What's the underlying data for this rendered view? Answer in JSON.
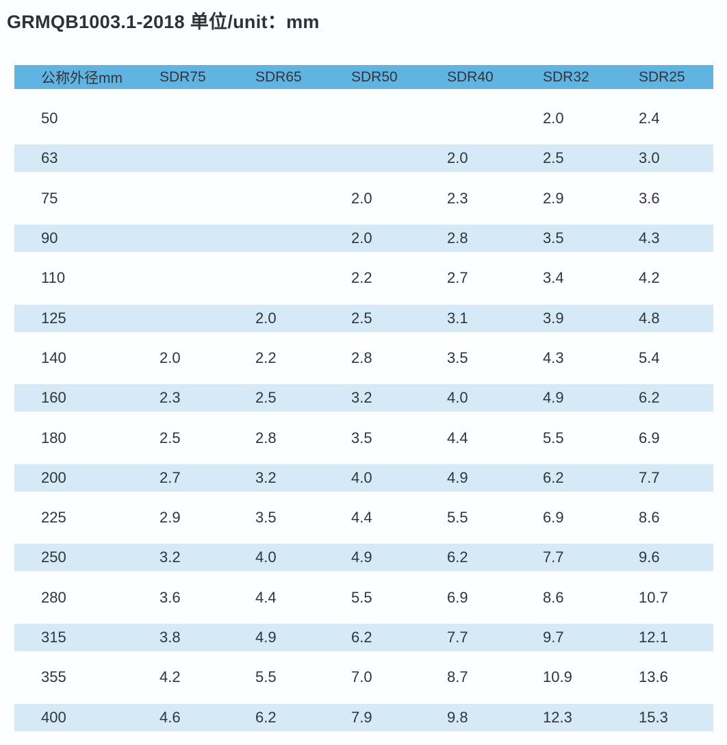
{
  "title": "GRMQB1003.1-2018 单位/unit：mm",
  "chart_data": {
    "type": "table",
    "standard": "GRMQB1003.1-2018",
    "unit_label": "单位/unit：mm",
    "columns": [
      "公称外径mm",
      "SDR75",
      "SDR65",
      "SDR50",
      "SDR40",
      "SDR32",
      "SDR25"
    ],
    "rows": [
      {
        "dn": "50",
        "values": [
          "",
          "",
          "",
          "",
          "2.0",
          "2.4"
        ]
      },
      {
        "dn": "63",
        "values": [
          "",
          "",
          "",
          "2.0",
          "2.5",
          "3.0"
        ]
      },
      {
        "dn": "75",
        "values": [
          "",
          "",
          "2.0",
          "2.3",
          "2.9",
          "3.6"
        ]
      },
      {
        "dn": "90",
        "values": [
          "",
          "",
          "2.0",
          "2.8",
          "3.5",
          "4.3"
        ]
      },
      {
        "dn": "110",
        "values": [
          "",
          "",
          "2.2",
          "2.7",
          "3.4",
          "4.2"
        ]
      },
      {
        "dn": "125",
        "values": [
          "",
          "2.0",
          "2.5",
          "3.1",
          "3.9",
          "4.8"
        ]
      },
      {
        "dn": "140",
        "values": [
          "2.0",
          "2.2",
          "2.8",
          "3.5",
          "4.3",
          "5.4"
        ]
      },
      {
        "dn": "160",
        "values": [
          "2.3",
          "2.5",
          "3.2",
          "4.0",
          "4.9",
          "6.2"
        ]
      },
      {
        "dn": "180",
        "values": [
          "2.5",
          "2.8",
          "3.5",
          "4.4",
          "5.5",
          "6.9"
        ]
      },
      {
        "dn": "200",
        "values": [
          "2.7",
          "3.2",
          "4.0",
          "4.9",
          "6.2",
          "7.7"
        ]
      },
      {
        "dn": "225",
        "values": [
          "2.9",
          "3.5",
          "4.4",
          "5.5",
          "6.9",
          "8.6"
        ]
      },
      {
        "dn": "250",
        "values": [
          "3.2",
          "4.0",
          "4.9",
          "6.2",
          "7.7",
          "9.6"
        ]
      },
      {
        "dn": "280",
        "values": [
          "3.6",
          "4.4",
          "5.5",
          "6.9",
          "8.6",
          "10.7"
        ]
      },
      {
        "dn": "315",
        "values": [
          "3.8",
          "4.9",
          "6.2",
          "7.7",
          "9.7",
          "12.1"
        ]
      },
      {
        "dn": "355",
        "values": [
          "4.2",
          "5.5",
          "7.0",
          "8.7",
          "10.9",
          "13.6"
        ]
      },
      {
        "dn": "400",
        "values": [
          "4.6",
          "6.2",
          "7.9",
          "9.8",
          "12.3",
          "15.3"
        ]
      }
    ]
  },
  "colors": {
    "header_bg": "#61b4e1",
    "stripe_bg": "#d6e9f7",
    "text": "#2f363b",
    "page_bg": "#fdfeff"
  }
}
